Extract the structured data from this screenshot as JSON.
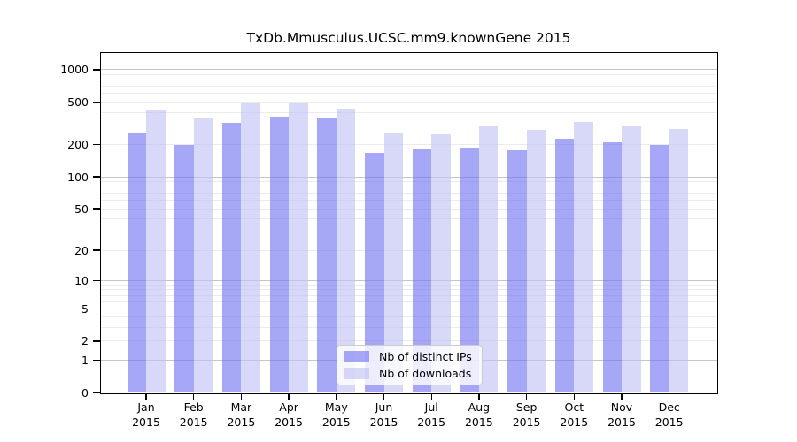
{
  "chart_data": {
    "type": "bar",
    "title": "TxDb.Mmusculus.UCSC.mm9.knownGene 2015",
    "categories": [
      "Jan",
      "Feb",
      "Mar",
      "Apr",
      "May",
      "Jun",
      "Jul",
      "Aug",
      "Sep",
      "Oct",
      "Nov",
      "Dec"
    ],
    "x_tick_sub_label": "2015",
    "series": [
      {
        "name": "Nb of distinct IPs",
        "color_hex": "#a7a7f8",
        "fill_rgba": "rgba(113,113,243,0.62)",
        "values": [
          260,
          199,
          320,
          365,
          356,
          166,
          182,
          187,
          178,
          228,
          212,
          197
        ]
      },
      {
        "name": "Nb of downloads",
        "color_hex": "#d8d8f8",
        "fill_rgba": "rgba(192,192,243,0.62)",
        "values": [
          415,
          357,
          492,
          495,
          435,
          256,
          249,
          300,
          277,
          325,
          303,
          282
        ]
      }
    ],
    "y_axis": {
      "scale": "log1p",
      "tick_labels": [
        "0",
        "1",
        "2",
        "5",
        "10",
        "20",
        "50",
        "100",
        "200",
        "500",
        "1000"
      ],
      "tick_values": [
        0,
        1,
        2,
        5,
        10,
        20,
        50,
        100,
        200,
        500,
        1000
      ],
      "major_grid_values": [
        1,
        10,
        100,
        1000
      ],
      "minor_grid_values": [
        2,
        3,
        4,
        5,
        6,
        7,
        8,
        9,
        20,
        30,
        40,
        50,
        60,
        70,
        80,
        90,
        200,
        300,
        400,
        500,
        600,
        700,
        800,
        900
      ],
      "ylim": [
        0,
        1430
      ],
      "grid": true
    },
    "legend": {
      "position": "lower-center"
    }
  }
}
